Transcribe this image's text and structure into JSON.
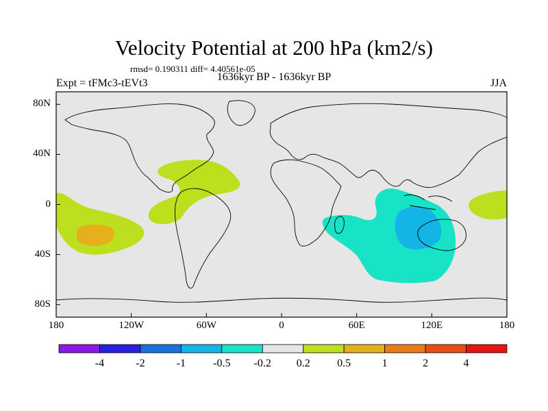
{
  "title": "Velocity Potential at 200 hPa (km2/s)",
  "stats": "rmsd= 0.190311 diff= 4.40561e-05",
  "subtitle": "1636kyr BP - 1636kyr BP",
  "experiment": "Expt = tFMc3-tEVt3",
  "season": "JJA",
  "chart_data": {
    "type": "heatmap",
    "projection": "cylindrical equidistant, global",
    "x_axis": {
      "range": [
        -180,
        180
      ],
      "ticks": [
        -180,
        -120,
        -60,
        0,
        60,
        120,
        180
      ],
      "tick_labels": [
        "180",
        "120W",
        "60W",
        "0",
        "60E",
        "120E",
        "180"
      ]
    },
    "y_axis": {
      "range": [
        -90,
        90
      ],
      "ticks": [
        80,
        40,
        0,
        -40,
        -80
      ],
      "tick_labels": [
        "80N",
        "40N",
        "0",
        "40S",
        "80S"
      ]
    },
    "colorbar": {
      "levels": [
        "-4",
        "-2",
        "-1",
        "-0.5",
        "-0.2",
        "0.2",
        "0.5",
        "1",
        "2",
        "4"
      ],
      "colors": [
        "#8a19e8",
        "#2b1fe0",
        "#1d6fe0",
        "#12b5e6",
        "#19e3c6",
        "#e6e6e6",
        "#bde01e",
        "#e6b01c",
        "#e67d16",
        "#e64e14",
        "#e61414"
      ]
    },
    "background_value_color": "#e6e6e6",
    "regions": [
      {
        "name": "N Atlantic / Caribbean",
        "range_label": "0.2 to 0.5",
        "color": "#bde01e",
        "lon": [
          -105,
          -40
        ],
        "lat": [
          -10,
          35
        ]
      },
      {
        "name": "E Pacific",
        "range_label": "0.2 to 0.5",
        "color": "#bde01e",
        "lon": [
          -180,
          -110
        ],
        "lat": [
          -45,
          5
        ]
      },
      {
        "name": "E Pacific core",
        "range_label": "0.5 to 1",
        "color": "#e6b01c",
        "lon": [
          -165,
          -145
        ],
        "lat": [
          -30,
          -20
        ]
      },
      {
        "name": "W Pacific",
        "range_label": "0.2 to 0.5",
        "color": "#bde01e",
        "lon": [
          150,
          180
        ],
        "lat": [
          -12,
          8
        ]
      },
      {
        "name": "Indian Ocean",
        "range_label": "-0.5 to -0.2",
        "color": "#19e3c6",
        "lon": [
          35,
          140
        ],
        "lat": [
          -62,
          12
        ]
      },
      {
        "name": "Indian Ocean core",
        "range_label": "-1 to -0.5",
        "color": "#12b5e6",
        "lon": [
          90,
          130
        ],
        "lat": [
          -35,
          -5
        ]
      }
    ]
  }
}
